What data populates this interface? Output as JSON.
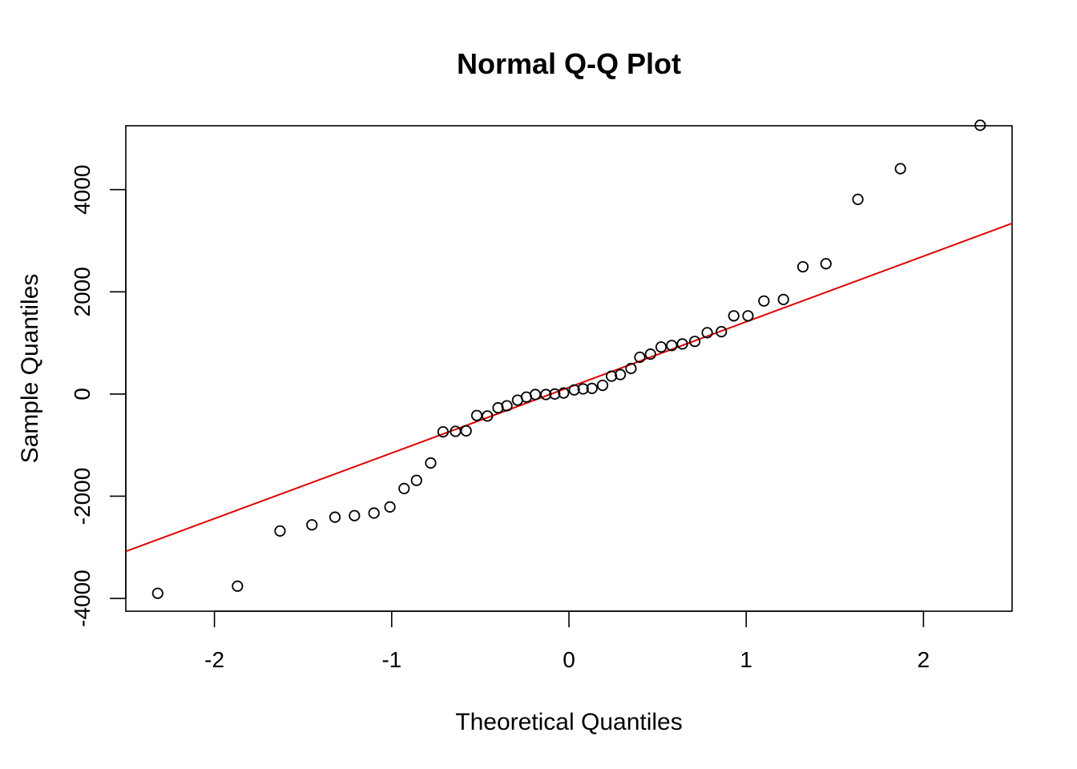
{
  "chart_data": {
    "type": "scatter",
    "title": "Normal Q-Q Plot",
    "xlabel": "Theoretical Quantiles",
    "ylabel": "Sample Quantiles",
    "xlim": [
      -2.5,
      2.5
    ],
    "ylim": [
      -4250,
      5250
    ],
    "x_ticks": [
      -2,
      -1,
      0,
      1,
      2
    ],
    "y_ticks": [
      -4000,
      -2000,
      0,
      2000,
      4000
    ],
    "grid": false,
    "legend": "none",
    "point_color": "#000000",
    "line_color": "#e00000",
    "reference_line": {
      "x": [
        -2.5,
        2.5
      ],
      "y": [
        -3080,
        3340
      ]
    },
    "points": [
      {
        "x": -2.32,
        "y": -3900
      },
      {
        "x": -1.87,
        "y": -3760
      },
      {
        "x": -1.63,
        "y": -2680
      },
      {
        "x": -1.45,
        "y": -2560
      },
      {
        "x": -1.32,
        "y": -2410
      },
      {
        "x": -1.21,
        "y": -2380
      },
      {
        "x": -1.1,
        "y": -2330
      },
      {
        "x": -1.01,
        "y": -2210
      },
      {
        "x": -0.93,
        "y": -1850
      },
      {
        "x": -0.86,
        "y": -1690
      },
      {
        "x": -0.78,
        "y": -1350
      },
      {
        "x": -0.71,
        "y": -740
      },
      {
        "x": -0.64,
        "y": -730
      },
      {
        "x": -0.58,
        "y": -720
      },
      {
        "x": -0.52,
        "y": -420
      },
      {
        "x": -0.46,
        "y": -430
      },
      {
        "x": -0.4,
        "y": -270
      },
      {
        "x": -0.35,
        "y": -230
      },
      {
        "x": -0.29,
        "y": -120
      },
      {
        "x": -0.24,
        "y": -60
      },
      {
        "x": -0.19,
        "y": -10
      },
      {
        "x": -0.13,
        "y": -10
      },
      {
        "x": -0.08,
        "y": 0
      },
      {
        "x": -0.03,
        "y": 20
      },
      {
        "x": 0.03,
        "y": 80
      },
      {
        "x": 0.08,
        "y": 100
      },
      {
        "x": 0.13,
        "y": 110
      },
      {
        "x": 0.19,
        "y": 170
      },
      {
        "x": 0.24,
        "y": 350
      },
      {
        "x": 0.29,
        "y": 380
      },
      {
        "x": 0.35,
        "y": 500
      },
      {
        "x": 0.4,
        "y": 720
      },
      {
        "x": 0.46,
        "y": 780
      },
      {
        "x": 0.52,
        "y": 920
      },
      {
        "x": 0.58,
        "y": 950
      },
      {
        "x": 0.64,
        "y": 980
      },
      {
        "x": 0.71,
        "y": 1030
      },
      {
        "x": 0.78,
        "y": 1200
      },
      {
        "x": 0.86,
        "y": 1220
      },
      {
        "x": 0.93,
        "y": 1530
      },
      {
        "x": 1.01,
        "y": 1530
      },
      {
        "x": 1.1,
        "y": 1820
      },
      {
        "x": 1.21,
        "y": 1850
      },
      {
        "x": 1.32,
        "y": 2490
      },
      {
        "x": 1.45,
        "y": 2550
      },
      {
        "x": 1.63,
        "y": 3810
      },
      {
        "x": 1.87,
        "y": 4410
      },
      {
        "x": 2.32,
        "y": 5260
      }
    ]
  }
}
